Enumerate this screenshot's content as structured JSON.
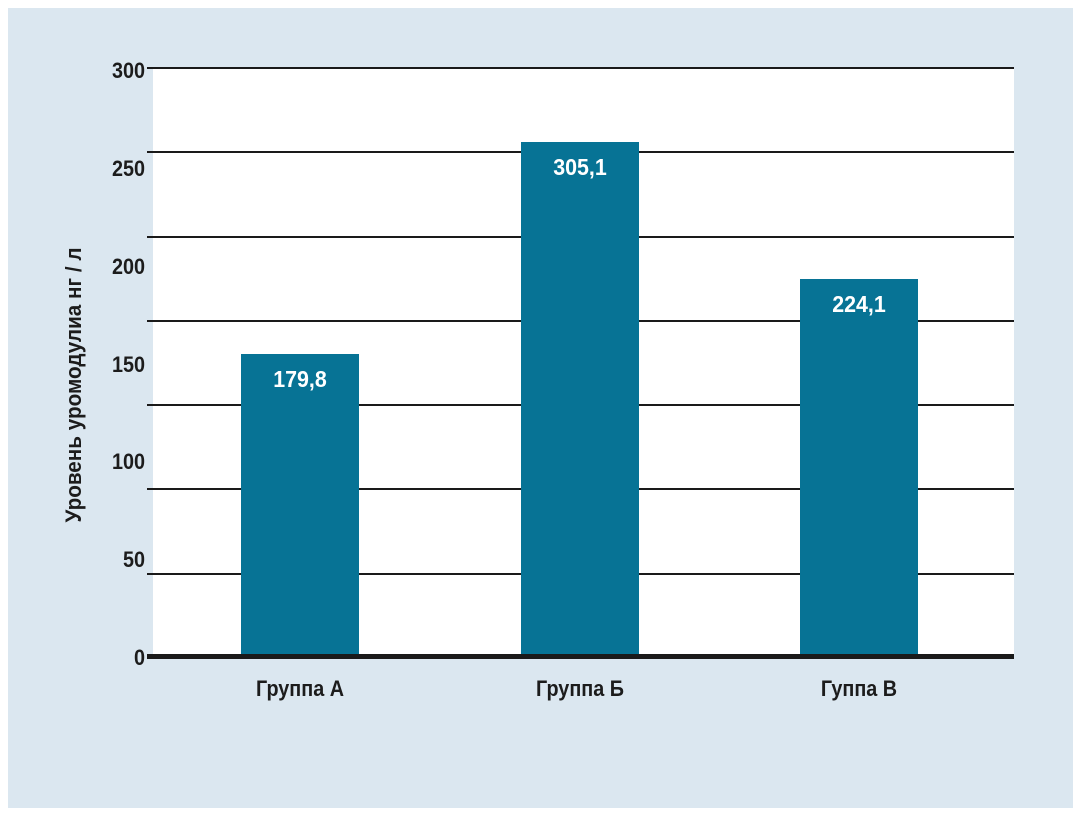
{
  "figure": {
    "page_background": "#ffffff",
    "panel_background": "#dbe7f0",
    "plot_background": "#ffffff",
    "axis_line_color": "#1a1a1a",
    "text_color": "#1c1c1c"
  },
  "chart_data": {
    "type": "bar",
    "title": "",
    "categories": [
      "Группа А",
      "Группа Б",
      "Гуппа В"
    ],
    "values": [
      179.8,
      305.1,
      224.1
    ],
    "value_labels": [
      "179,8",
      "305,1",
      "224,1"
    ],
    "value_label_position": "inside-top",
    "value_label_color": "#ffffff",
    "bar_color": "#077395",
    "ylabel": "Уровень уромодулиа нг / л",
    "xlabel": "",
    "y_ticks": [
      "300",
      "250",
      "200",
      "150",
      "100",
      "50",
      "0"
    ],
    "ylim": [
      0,
      300
    ],
    "grid": {
      "orientation": "horizontal",
      "lines_including_baseline": 8,
      "note": "8 evenly spaced horizontal lines; the 7 tick labels 300..0 are evenly spaced top-to-bottom and drift relative to interior gridlines, as in the original figure"
    },
    "legend": "none",
    "bar_tops_as_drawn_axis_units": [
      155.5,
      263.7,
      193.8
    ]
  }
}
